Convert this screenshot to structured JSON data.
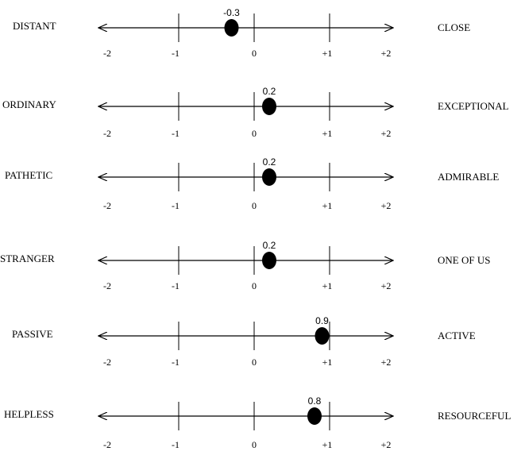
{
  "chart_data": {
    "type": "scatter",
    "xlim": [
      -2,
      2
    ],
    "ticks": [
      {
        "value": -2,
        "label": "-2"
      },
      {
        "value": -1,
        "label": "-1"
      },
      {
        "value": 0,
        "label": "0"
      },
      {
        "value": 1,
        "label": "+1"
      },
      {
        "value": 2,
        "label": "+2"
      }
    ],
    "scales": [
      {
        "left": "DISTANT",
        "right": "CLOSE",
        "value": -0.3,
        "value_label": "-0.3"
      },
      {
        "left": "ORDINARY",
        "right": "EXCEPTIONAL",
        "value": 0.2,
        "value_label": "0.2"
      },
      {
        "left": "PATHETIC",
        "right": "ADMIRABLE",
        "value": 0.2,
        "value_label": "0.2"
      },
      {
        "left": "STRANGER",
        "right": "ONE OF US",
        "value": 0.2,
        "value_label": "0.2"
      },
      {
        "left": "PASSIVE",
        "right": "ACTIVE",
        "value": 0.9,
        "value_label": "0.9"
      },
      {
        "left": "HELPLESS",
        "right": "RESOURCEFUL",
        "value": 0.8,
        "value_label": "0.8"
      }
    ],
    "marker_color": "#000000",
    "line_color": "#000000"
  }
}
